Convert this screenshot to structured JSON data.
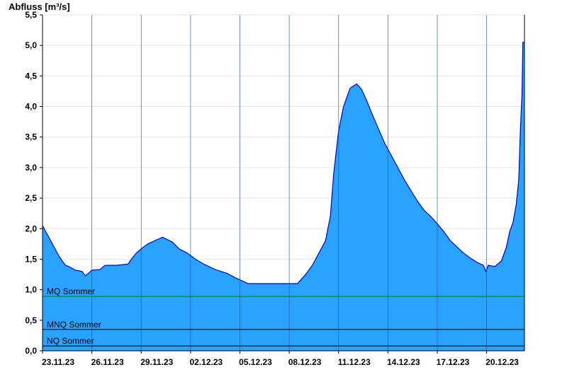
{
  "chart_data": {
    "type": "area",
    "ylabel": "Abfluss [m³/s]",
    "ylim": [
      0,
      5.5
    ],
    "yticks": [
      0,
      0.5,
      1,
      1.5,
      2,
      2.5,
      3,
      3.5,
      4,
      4.5,
      5,
      5.5
    ],
    "ytick_labels": [
      "0,0",
      "0,5",
      "1,0",
      "1,5",
      "2,0",
      "2,5",
      "3,0",
      "3,5",
      "4,0",
      "4,5",
      "5,0",
      "5,5"
    ],
    "xlim": [
      0,
      29.3
    ],
    "x_ticks": [
      {
        "x": 0,
        "label": "23.11.23"
      },
      {
        "x": 3,
        "label": "26.11.23"
      },
      {
        "x": 6,
        "label": "29.11.23"
      },
      {
        "x": 9,
        "label": "02.12.23"
      },
      {
        "x": 12,
        "label": "05.12.23"
      },
      {
        "x": 15,
        "label": "08.12.23"
      },
      {
        "x": 18,
        "label": "11.12.23"
      },
      {
        "x": 21,
        "label": "14.12.23"
      },
      {
        "x": 24,
        "label": "17.12.23"
      },
      {
        "x": 27,
        "label": "20.12.23"
      }
    ],
    "grid": true,
    "series": [
      {
        "fill_color": "#29a3ff",
        "line_color": "#0000cc",
        "x": [
          0,
          0.2,
          0.4,
          0.6,
          0.8,
          1.0,
          1.2,
          1.4,
          1.6,
          2.0,
          2.4,
          2.6,
          2.8,
          3.0,
          3.5,
          3.8,
          4.5,
          5.2,
          5.4,
          5.7,
          6.0,
          6.4,
          6.8,
          7.3,
          7.9,
          8.3,
          8.8,
          9.3,
          9.8,
          10.5,
          11.2,
          11.7,
          12.5,
          13.5,
          14.5,
          15.5,
          16.0,
          16.4,
          16.8,
          17.2,
          17.5,
          17.7,
          18.0,
          18.3,
          18.7,
          19.1,
          19.4,
          19.7,
          20.0,
          20.4,
          20.8,
          21.2,
          21.6,
          22.0,
          22.4,
          22.8,
          23.2,
          23.6,
          24.0,
          24.4,
          24.8,
          25.2,
          25.6,
          26.0,
          26.4,
          26.8,
          26.95,
          27.1,
          27.5,
          27.9,
          28.2,
          28.4,
          28.6,
          28.8,
          28.95,
          29.05,
          29.15,
          29.2,
          29.3
        ],
        "values": [
          2.05,
          1.95,
          1.85,
          1.75,
          1.65,
          1.55,
          1.47,
          1.4,
          1.38,
          1.32,
          1.3,
          1.23,
          1.27,
          1.32,
          1.33,
          1.4,
          1.4,
          1.42,
          1.5,
          1.6,
          1.67,
          1.75,
          1.8,
          1.86,
          1.78,
          1.67,
          1.6,
          1.5,
          1.42,
          1.33,
          1.27,
          1.2,
          1.1,
          1.1,
          1.1,
          1.1,
          1.25,
          1.4,
          1.6,
          1.8,
          2.2,
          2.9,
          3.6,
          4.0,
          4.3,
          4.37,
          4.28,
          4.1,
          3.9,
          3.65,
          3.4,
          3.2,
          3.0,
          2.8,
          2.62,
          2.45,
          2.3,
          2.2,
          2.08,
          1.95,
          1.8,
          1.7,
          1.6,
          1.52,
          1.45,
          1.4,
          1.3,
          1.4,
          1.38,
          1.47,
          1.7,
          1.95,
          2.1,
          2.4,
          2.8,
          3.6,
          4.2,
          5.05,
          5.05
        ]
      }
    ],
    "reference_lines": [
      {
        "label": "MQ Sommer",
        "value": 0.89,
        "color": "#008000"
      },
      {
        "label": "MNQ Sommer",
        "value": 0.35,
        "color": "#000000"
      },
      {
        "label": "NQ Sommer",
        "value": 0.08,
        "color": "#000000"
      }
    ]
  }
}
